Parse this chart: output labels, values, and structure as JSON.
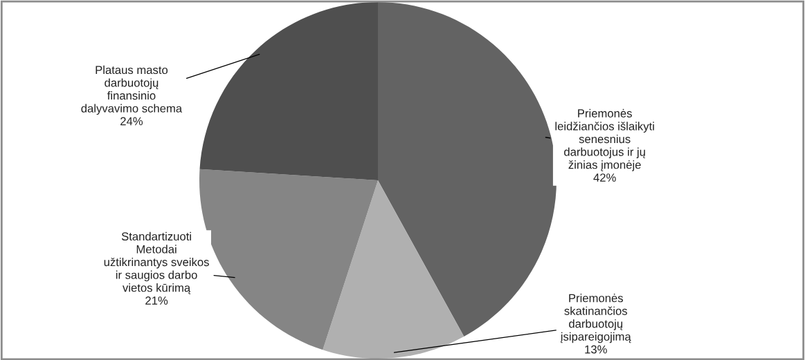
{
  "chart_data": {
    "type": "pie",
    "categories": [
      "Priemonės\nleidžiančios išlaikyti\nsenesnius\ndarbuotojus ir jų\nžinias įmonėje",
      "Priemonės\nskatinančios\ndarbuotojų\nįsipareigojimą",
      "Standartizuoti\nMetodai\nužtikrinantys sveikos\nir saugios darbo\nvietos kūrimą",
      "Plataus masto\ndarbuotojų\nfinansinio\ndalyvavimo schema"
    ],
    "values": [
      42,
      13,
      21,
      24
    ],
    "colors": [
      "#636363",
      "#b0b0b0",
      "#858585",
      "#4f4f4f"
    ],
    "value_labels": [
      "42%",
      "13%",
      "21%",
      "24%"
    ]
  }
}
